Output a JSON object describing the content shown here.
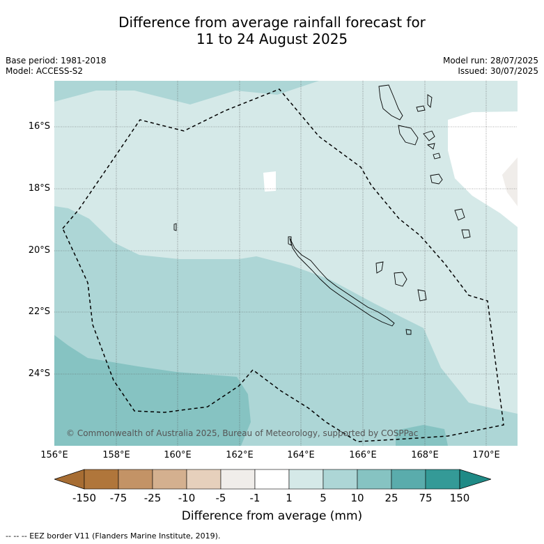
{
  "title_line1": "Difference from average rainfall forecast for",
  "title_line2": "11 to 24 August 2025",
  "base_period": "Base period: 1981-2018",
  "model": "Model: ACCESS-S2",
  "model_run": "Model run: 28/07/2025",
  "issued": "Issued: 30/07/2025",
  "lat_labels": [
    "16°S",
    "18°S",
    "20°S",
    "22°S",
    "24°S"
  ],
  "lon_labels": [
    "156°E",
    "158°E",
    "160°E",
    "162°E",
    "164°E",
    "166°E",
    "168°E",
    "170°E"
  ],
  "credit": "© Commonwealth of Australia 2025, Bureau of Meteorology, supported by COSPPac",
  "colorbar": {
    "labels": [
      "-150",
      "-75",
      "-25",
      "-10",
      "-5",
      "-1",
      "1",
      "5",
      "10",
      "25",
      "75",
      "150"
    ],
    "colors": [
      "#a76d33",
      "#b0763b",
      "#c39366",
      "#d4b08f",
      "#e6d0bc",
      "#f0edea",
      "#ffffff",
      "#d5e9e8",
      "#add6d6",
      "#86c3c2",
      "#5aacac",
      "#349a97",
      "#1f8a86"
    ],
    "title": "Difference from average (mm)"
  },
  "footer": "--  --  -- EEZ border V11 (Flanders Marine Institute, 2019)."
}
